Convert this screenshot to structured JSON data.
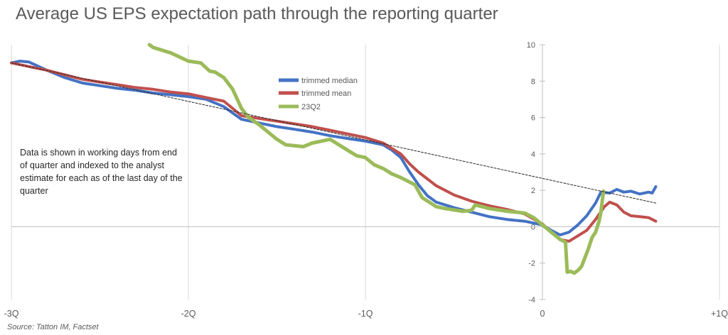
{
  "chart_data": {
    "type": "line",
    "title": "Average US EPS expectation path through the reporting quarter",
    "xlabel": "",
    "ylabel": "",
    "x_ticks": [
      {
        "value": -3,
        "label": "-3Q"
      },
      {
        "value": -2,
        "label": "-2Q"
      },
      {
        "value": -1,
        "label": "-1Q"
      },
      {
        "value": 0,
        "label": "0"
      },
      {
        "value": 1,
        "label": "+1Q"
      }
    ],
    "xlim": [
      -3,
      1
    ],
    "y_ticks": [
      -4,
      -2,
      0,
      2,
      4,
      6,
      8,
      10
    ],
    "ylim": [
      -4,
      10
    ],
    "grid": "vertical",
    "legend_position": "center-left",
    "series": [
      {
        "name": "trimmed median",
        "color": "#4472c4",
        "points": [
          [
            -3.0,
            9.0
          ],
          [
            -2.95,
            9.1
          ],
          [
            -2.9,
            9.05
          ],
          [
            -2.8,
            8.6
          ],
          [
            -2.7,
            8.2
          ],
          [
            -2.6,
            7.9
          ],
          [
            -2.5,
            7.75
          ],
          [
            -2.4,
            7.6
          ],
          [
            -2.3,
            7.5
          ],
          [
            -2.2,
            7.35
          ],
          [
            -2.1,
            7.25
          ],
          [
            -2.0,
            7.15
          ],
          [
            -1.9,
            7.0
          ],
          [
            -1.8,
            6.6
          ],
          [
            -1.7,
            5.9
          ],
          [
            -1.6,
            5.7
          ],
          [
            -1.5,
            5.5
          ],
          [
            -1.4,
            5.35
          ],
          [
            -1.3,
            5.2
          ],
          [
            -1.2,
            5.0
          ],
          [
            -1.1,
            4.85
          ],
          [
            -1.0,
            4.7
          ],
          [
            -0.9,
            4.5
          ],
          [
            -0.85,
            4.2
          ],
          [
            -0.8,
            3.8
          ],
          [
            -0.75,
            3.0
          ],
          [
            -0.7,
            2.3
          ],
          [
            -0.65,
            1.7
          ],
          [
            -0.6,
            1.35
          ],
          [
            -0.5,
            1.05
          ],
          [
            -0.4,
            0.8
          ],
          [
            -0.3,
            0.55
          ],
          [
            -0.2,
            0.4
          ],
          [
            -0.1,
            0.3
          ],
          [
            0.0,
            0.1
          ],
          [
            0.05,
            -0.2
          ],
          [
            0.1,
            -0.45
          ],
          [
            0.15,
            -0.3
          ],
          [
            0.2,
            0.1
          ],
          [
            0.25,
            0.6
          ],
          [
            0.3,
            1.3
          ],
          [
            0.33,
            1.9
          ],
          [
            0.38,
            1.85
          ],
          [
            0.42,
            2.05
          ],
          [
            0.46,
            1.9
          ],
          [
            0.5,
            1.95
          ],
          [
            0.55,
            1.8
          ],
          [
            0.6,
            1.9
          ],
          [
            0.62,
            1.85
          ],
          [
            0.64,
            2.2
          ]
        ]
      },
      {
        "name": "trimmed mean",
        "color": "#c0504d",
        "points": [
          [
            -3.0,
            9.0
          ],
          [
            -2.9,
            8.8
          ],
          [
            -2.8,
            8.6
          ],
          [
            -2.7,
            8.35
          ],
          [
            -2.6,
            8.1
          ],
          [
            -2.5,
            7.95
          ],
          [
            -2.4,
            7.8
          ],
          [
            -2.3,
            7.65
          ],
          [
            -2.2,
            7.55
          ],
          [
            -2.1,
            7.4
          ],
          [
            -2.0,
            7.3
          ],
          [
            -1.9,
            7.1
          ],
          [
            -1.8,
            6.9
          ],
          [
            -1.7,
            6.1
          ],
          [
            -1.6,
            5.95
          ],
          [
            -1.5,
            5.8
          ],
          [
            -1.4,
            5.65
          ],
          [
            -1.3,
            5.5
          ],
          [
            -1.2,
            5.3
          ],
          [
            -1.1,
            5.1
          ],
          [
            -1.0,
            4.9
          ],
          [
            -0.9,
            4.6
          ],
          [
            -0.8,
            4.0
          ],
          [
            -0.75,
            3.45
          ],
          [
            -0.7,
            3.0
          ],
          [
            -0.6,
            2.25
          ],
          [
            -0.5,
            1.75
          ],
          [
            -0.4,
            1.4
          ],
          [
            -0.3,
            1.15
          ],
          [
            -0.2,
            0.95
          ],
          [
            -0.1,
            0.7
          ],
          [
            0.0,
            0.15
          ],
          [
            0.05,
            -0.3
          ],
          [
            0.1,
            -0.7
          ],
          [
            0.15,
            -0.8
          ],
          [
            0.2,
            -0.5
          ],
          [
            0.25,
            -0.2
          ],
          [
            0.3,
            0.4
          ],
          [
            0.35,
            1.1
          ],
          [
            0.38,
            1.35
          ],
          [
            0.42,
            1.2
          ],
          [
            0.46,
            0.8
          ],
          [
            0.5,
            0.6
          ],
          [
            0.55,
            0.55
          ],
          [
            0.6,
            0.5
          ],
          [
            0.64,
            0.3
          ]
        ]
      },
      {
        "name": "23Q2",
        "color": "#9bbb59",
        "points": [
          [
            -2.22,
            10.0
          ],
          [
            -2.2,
            9.85
          ],
          [
            -2.1,
            9.55
          ],
          [
            -2.0,
            9.1
          ],
          [
            -1.93,
            9.0
          ],
          [
            -1.88,
            8.55
          ],
          [
            -1.85,
            8.5
          ],
          [
            -1.8,
            8.2
          ],
          [
            -1.75,
            7.55
          ],
          [
            -1.7,
            6.5
          ],
          [
            -1.66,
            6.0
          ],
          [
            -1.6,
            5.6
          ],
          [
            -1.55,
            5.2
          ],
          [
            -1.5,
            4.8
          ],
          [
            -1.45,
            4.5
          ],
          [
            -1.35,
            4.4
          ],
          [
            -1.3,
            4.6
          ],
          [
            -1.2,
            4.8
          ],
          [
            -1.15,
            4.5
          ],
          [
            -1.1,
            4.2
          ],
          [
            -1.05,
            3.9
          ],
          [
            -1.0,
            3.8
          ],
          [
            -0.95,
            3.4
          ],
          [
            -0.9,
            3.2
          ],
          [
            -0.85,
            2.9
          ],
          [
            -0.8,
            2.7
          ],
          [
            -0.72,
            2.3
          ],
          [
            -0.68,
            1.6
          ],
          [
            -0.6,
            1.1
          ],
          [
            -0.55,
            1.0
          ],
          [
            -0.45,
            0.85
          ],
          [
            -0.4,
            0.9
          ],
          [
            -0.38,
            1.2
          ],
          [
            -0.3,
            1.0
          ],
          [
            -0.2,
            0.85
          ],
          [
            -0.1,
            0.75
          ],
          [
            -0.05,
            0.5
          ],
          [
            0.0,
            0.1
          ],
          [
            0.05,
            -0.3
          ],
          [
            0.1,
            -0.7
          ],
          [
            0.13,
            -0.85
          ],
          [
            0.14,
            -2.5
          ],
          [
            0.16,
            -2.45
          ],
          [
            0.18,
            -2.55
          ],
          [
            0.2,
            -2.4
          ],
          [
            0.22,
            -2.2
          ],
          [
            0.24,
            -1.7
          ],
          [
            0.26,
            -1.2
          ],
          [
            0.28,
            -0.6
          ],
          [
            0.3,
            -0.3
          ],
          [
            0.32,
            0.3
          ],
          [
            0.33,
            0.8
          ],
          [
            0.34,
            1.6
          ],
          [
            0.345,
            1.95
          ]
        ]
      },
      {
        "name": "",
        "role": "trend",
        "color": "#262626",
        "points": [
          [
            -3.0,
            9.0
          ],
          [
            0.64,
            1.3
          ]
        ]
      }
    ]
  },
  "note": "Data is shown in working days from end of quarter and indexed to the analyst estimate for each as of the last day of the quarter",
  "source": "Source:  Tatton IM, Factset"
}
